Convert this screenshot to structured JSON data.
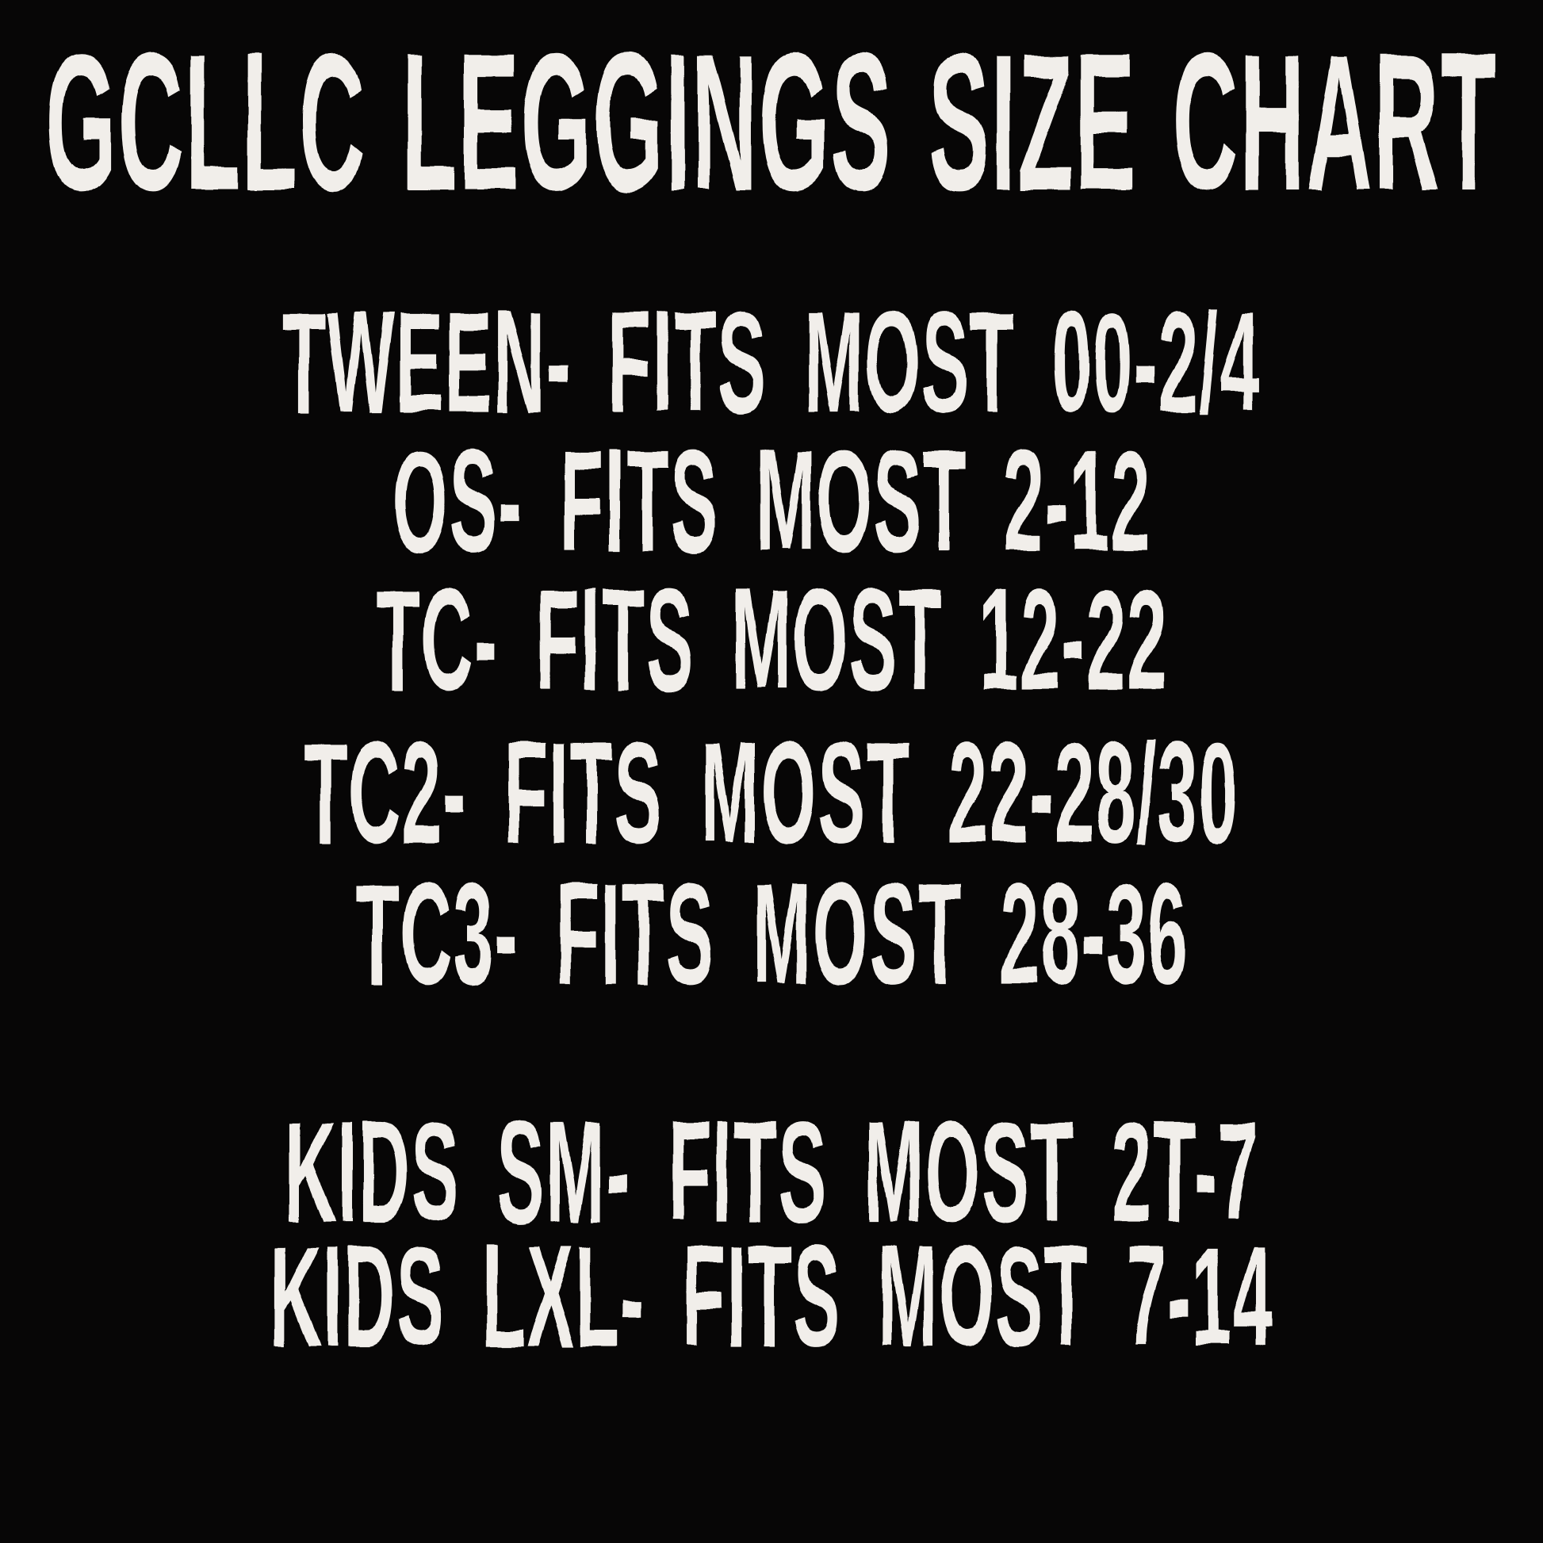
{
  "page": {
    "background_color": "#070606",
    "text_color": "#f1eeea"
  },
  "poster": {
    "title": "GCLLC LEGGINGS SIZE CHART",
    "adult_lines": [
      "TWEEN- FITS MOST 00-2/4",
      "OS- FITS MOST 2-12",
      "TC- FITS MOST 12-22",
      "TC2- FITS MOST 22-28/30",
      "TC3- FITS MOST 28-36"
    ],
    "kids_lines": [
      "KIDS SM- FITS MOST 2T-7",
      "KIDS LXL- FITS MOST 7-14"
    ]
  },
  "chart_data": {
    "type": "table",
    "title": "GCLLC LEGGINGS SIZE CHART",
    "columns": [
      "size",
      "fits_most"
    ],
    "rows": [
      {
        "size": "TWEEN",
        "fits_most": "00-2/4"
      },
      {
        "size": "OS",
        "fits_most": "2-12"
      },
      {
        "size": "TC",
        "fits_most": "12-22"
      },
      {
        "size": "TC2",
        "fits_most": "22-28/30"
      },
      {
        "size": "TC3",
        "fits_most": "28-36"
      },
      {
        "size": "KIDS SM",
        "fits_most": "2T-7"
      },
      {
        "size": "KIDS LXL",
        "fits_most": "7-14"
      }
    ]
  }
}
